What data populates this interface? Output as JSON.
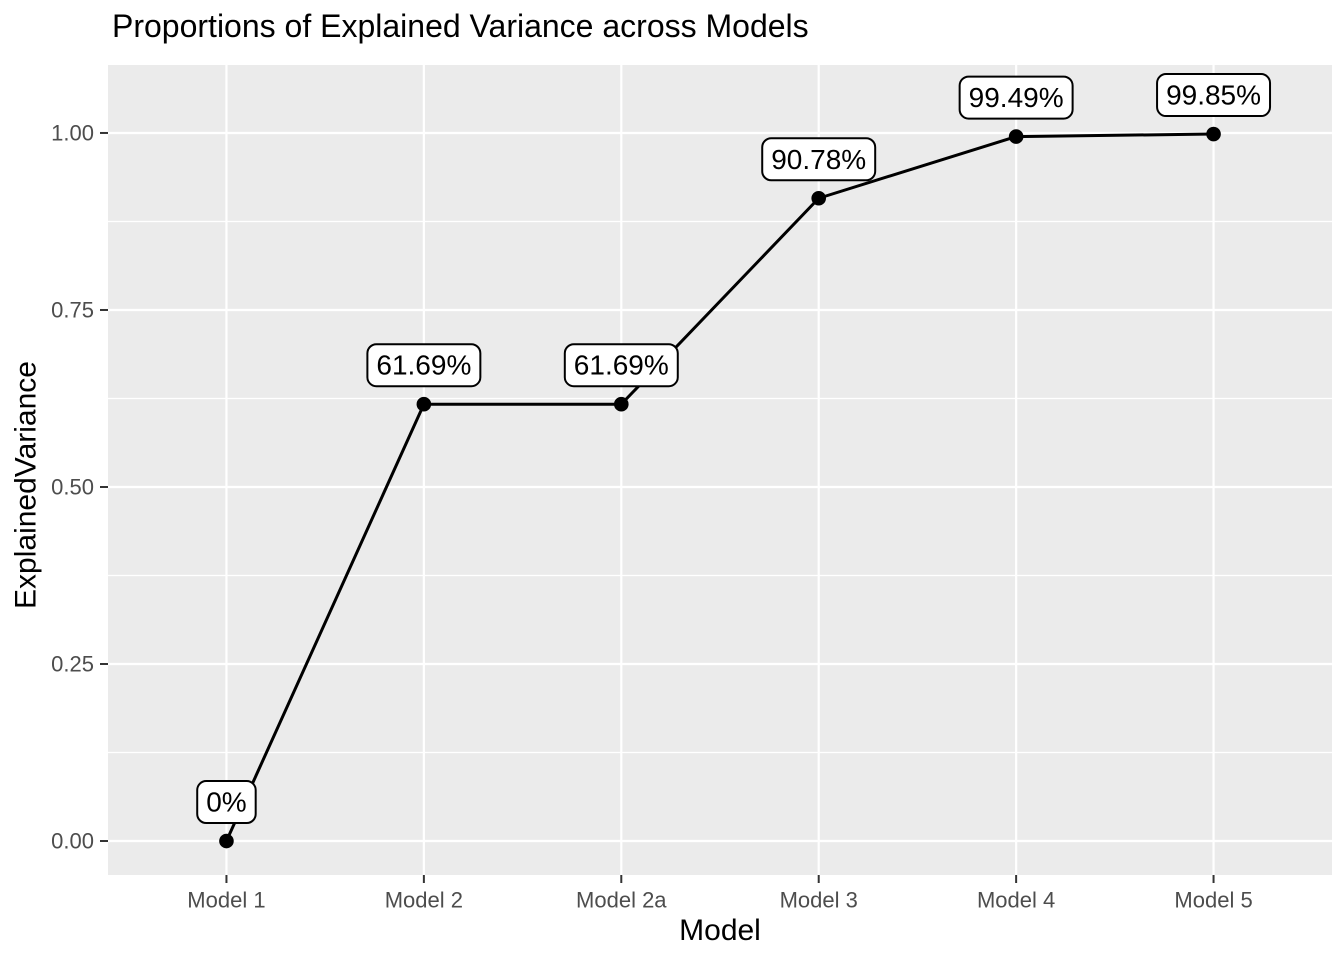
{
  "chart_data": {
    "type": "line",
    "title": "Proportions of Explained Variance across Models",
    "xlabel": "Model",
    "ylabel": "ExplainedVariance",
    "categories": [
      "Model 1",
      "Model 2",
      "Model 2a",
      "Model 3",
      "Model 4",
      "Model 5"
    ],
    "series": [
      {
        "name": "ExplainedVariance",
        "values": [
          0,
          0.6169,
          0.6169,
          0.9078,
          0.9949,
          0.9985
        ]
      }
    ],
    "point_labels": [
      "0%",
      "61.69%",
      "61.69%",
      "90.78%",
      "99.49%",
      "99.85%"
    ],
    "ytick_labels": [
      "0.00",
      "0.25",
      "0.50",
      "0.75",
      "1.00"
    ],
    "ytick_values": [
      0,
      0.25,
      0.5,
      0.75,
      1.0
    ],
    "minor_ytick_values": [
      0.125,
      0.375,
      0.625,
      0.875
    ],
    "ylim": [
      -0.048,
      1.096
    ],
    "grid": {
      "major": true,
      "minor": true,
      "vertical_major": true
    },
    "legend_position": "none",
    "colors": {
      "background": "#FFFFFF",
      "panel": "#EBEBEB",
      "grid": "#FFFFFF",
      "series_line": "#000000",
      "point": "#000000",
      "label_bg": "#FFFFFF",
      "label_border": "#000000",
      "label_text": "#000000",
      "tick_text": "#4D4D4D",
      "tick_mark": "#333333",
      "title_text": "#000000",
      "axis_title_text": "#000000"
    }
  }
}
